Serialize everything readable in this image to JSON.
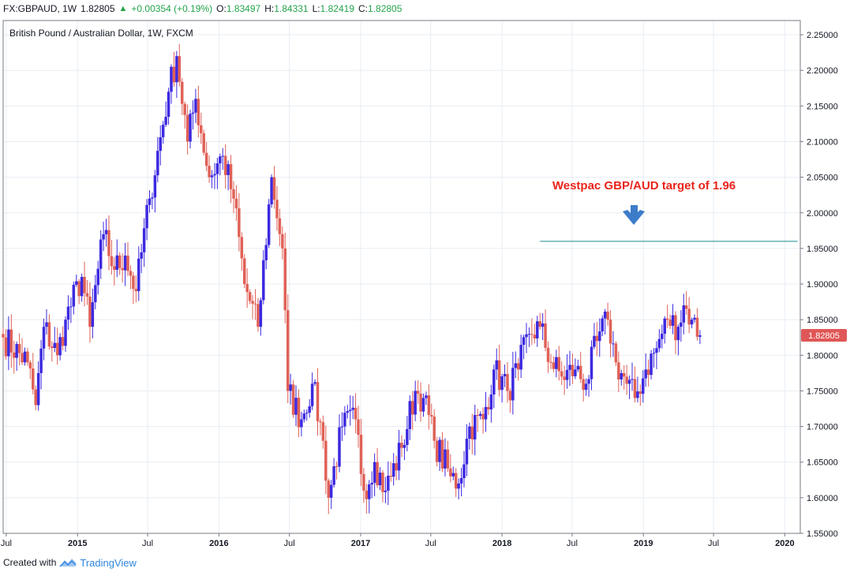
{
  "header": {
    "symbol": "FX:GBPAUD, 1W",
    "last": "1.82805",
    "change": "+0.00354 (+0.19%)",
    "o_label": "O:",
    "o_value": "1.83497",
    "h_label": "H:",
    "h_value": "1.84331",
    "l_label": "L:",
    "l_value": "1.82419",
    "c_label": "C:",
    "c_value": "1.82805"
  },
  "footer": {
    "created_with": "Created with",
    "brand": "TradingView"
  },
  "colors": {
    "up": "#3c29e0",
    "down": "#e06157",
    "target_line": "#1a8a8a",
    "annotation": "#e8241b",
    "arrow": "#3d7cc9",
    "price_tag": "#e05757",
    "grid": "#e8edf3"
  },
  "chart_data": {
    "type": "candlestick",
    "title": "British Pound / Australian Dollar, 1W, FXCM",
    "xlabel": "",
    "ylabel": "",
    "ylim": [
      1.55,
      2.27
    ],
    "x_range": [
      "2014-06-23",
      "2020-02-10"
    ],
    "grid": true,
    "y_ticks": [
      "1.55000",
      "1.60000",
      "1.65000",
      "1.70000",
      "1.75000",
      "1.80000",
      "1.85000",
      "1.90000",
      "1.95000",
      "2.00000",
      "2.05000",
      "2.10000",
      "2.15000",
      "2.20000",
      "2.25000"
    ],
    "x_ticks": [
      {
        "label": "Jul",
        "date": "2014-07-01",
        "bold": false
      },
      {
        "label": "2015",
        "date": "2015-01-01",
        "bold": true
      },
      {
        "label": "Jul",
        "date": "2015-07-01",
        "bold": false
      },
      {
        "label": "2016",
        "date": "2016-01-01",
        "bold": true
      },
      {
        "label": "Jul",
        "date": "2016-07-01",
        "bold": false
      },
      {
        "label": "2017",
        "date": "2017-01-01",
        "bold": true
      },
      {
        "label": "Jul",
        "date": "2017-07-01",
        "bold": false
      },
      {
        "label": "2018",
        "date": "2018-01-01",
        "bold": true
      },
      {
        "label": "Jul",
        "date": "2018-07-01",
        "bold": false
      },
      {
        "label": "2019",
        "date": "2019-01-01",
        "bold": true
      },
      {
        "label": "Jul",
        "date": "2019-07-01",
        "bold": false
      },
      {
        "label": "2020",
        "date": "2020-01-01",
        "bold": true
      }
    ],
    "closes": [
      {
        "date": "2014-06-23",
        "value": 1.825
      },
      {
        "date": "2014-08-25",
        "value": 1.79
      },
      {
        "date": "2014-09-15",
        "value": 1.73
      },
      {
        "date": "2014-10-06",
        "value": 1.84
      },
      {
        "date": "2014-11-10",
        "value": 1.8
      },
      {
        "date": "2014-12-01",
        "value": 1.85
      },
      {
        "date": "2015-01-12",
        "value": 1.91
      },
      {
        "date": "2015-02-02",
        "value": 1.84
      },
      {
        "date": "2015-03-09",
        "value": 1.97
      },
      {
        "date": "2015-04-06",
        "value": 1.92
      },
      {
        "date": "2015-05-04",
        "value": 1.94
      },
      {
        "date": "2015-06-01",
        "value": 1.89
      },
      {
        "date": "2015-07-06",
        "value": 2.02
      },
      {
        "date": "2015-08-24",
        "value": 2.17
      },
      {
        "date": "2015-09-14",
        "value": 2.22
      },
      {
        "date": "2015-10-12",
        "value": 2.1
      },
      {
        "date": "2015-11-02",
        "value": 2.16
      },
      {
        "date": "2015-12-07",
        "value": 2.05
      },
      {
        "date": "2016-01-11",
        "value": 2.08
      },
      {
        "date": "2016-02-08",
        "value": 2.02
      },
      {
        "date": "2016-03-07",
        "value": 1.9
      },
      {
        "date": "2016-04-11",
        "value": 1.84
      },
      {
        "date": "2016-05-16",
        "value": 2.05
      },
      {
        "date": "2016-06-13",
        "value": 1.95
      },
      {
        "date": "2016-06-27",
        "value": 1.75
      },
      {
        "date": "2016-08-01",
        "value": 1.71
      },
      {
        "date": "2016-08-29",
        "value": 1.76
      },
      {
        "date": "2016-09-26",
        "value": 1.68
      },
      {
        "date": "2016-10-10",
        "value": 1.6
      },
      {
        "date": "2016-11-14",
        "value": 1.7
      },
      {
        "date": "2016-12-19",
        "value": 1.71
      },
      {
        "date": "2017-01-09",
        "value": 1.61
      },
      {
        "date": "2017-02-06",
        "value": 1.65
      },
      {
        "date": "2017-03-06",
        "value": 1.61
      },
      {
        "date": "2017-04-17",
        "value": 1.67
      },
      {
        "date": "2017-05-22",
        "value": 1.75
      },
      {
        "date": "2017-06-12",
        "value": 1.74
      },
      {
        "date": "2017-07-10",
        "value": 1.68
      },
      {
        "date": "2017-08-21",
        "value": 1.63
      },
      {
        "date": "2017-09-11",
        "value": 1.62
      },
      {
        "date": "2017-10-09",
        "value": 1.7
      },
      {
        "date": "2017-11-13",
        "value": 1.71
      },
      {
        "date": "2017-12-11",
        "value": 1.78
      },
      {
        "date": "2018-01-15",
        "value": 1.75
      },
      {
        "date": "2018-02-12",
        "value": 1.78
      },
      {
        "date": "2018-03-12",
        "value": 1.83
      },
      {
        "date": "2018-04-09",
        "value": 1.84
      },
      {
        "date": "2018-05-07",
        "value": 1.79
      },
      {
        "date": "2018-06-04",
        "value": 1.77
      },
      {
        "date": "2018-07-09",
        "value": 1.78
      },
      {
        "date": "2018-08-06",
        "value": 1.76
      },
      {
        "date": "2018-09-03",
        "value": 1.82
      },
      {
        "date": "2018-10-01",
        "value": 1.85
      },
      {
        "date": "2018-10-22",
        "value": 1.79
      },
      {
        "date": "2018-11-19",
        "value": 1.76
      },
      {
        "date": "2018-12-10",
        "value": 1.74
      },
      {
        "date": "2019-01-07",
        "value": 1.78
      },
      {
        "date": "2019-02-04",
        "value": 1.81
      },
      {
        "date": "2019-03-04",
        "value": 1.85
      },
      {
        "date": "2019-04-01",
        "value": 1.84
      },
      {
        "date": "2019-04-15",
        "value": 1.87
      },
      {
        "date": "2019-05-06",
        "value": 1.85
      },
      {
        "date": "2019-05-27",
        "value": 1.82805
      }
    ],
    "current_price": "1.82805",
    "target_line": {
      "value": 1.96,
      "start": "2018-04-09",
      "end": "2020-02-03"
    },
    "annotation": "Westpac GBP/AUD target of 1.96"
  }
}
